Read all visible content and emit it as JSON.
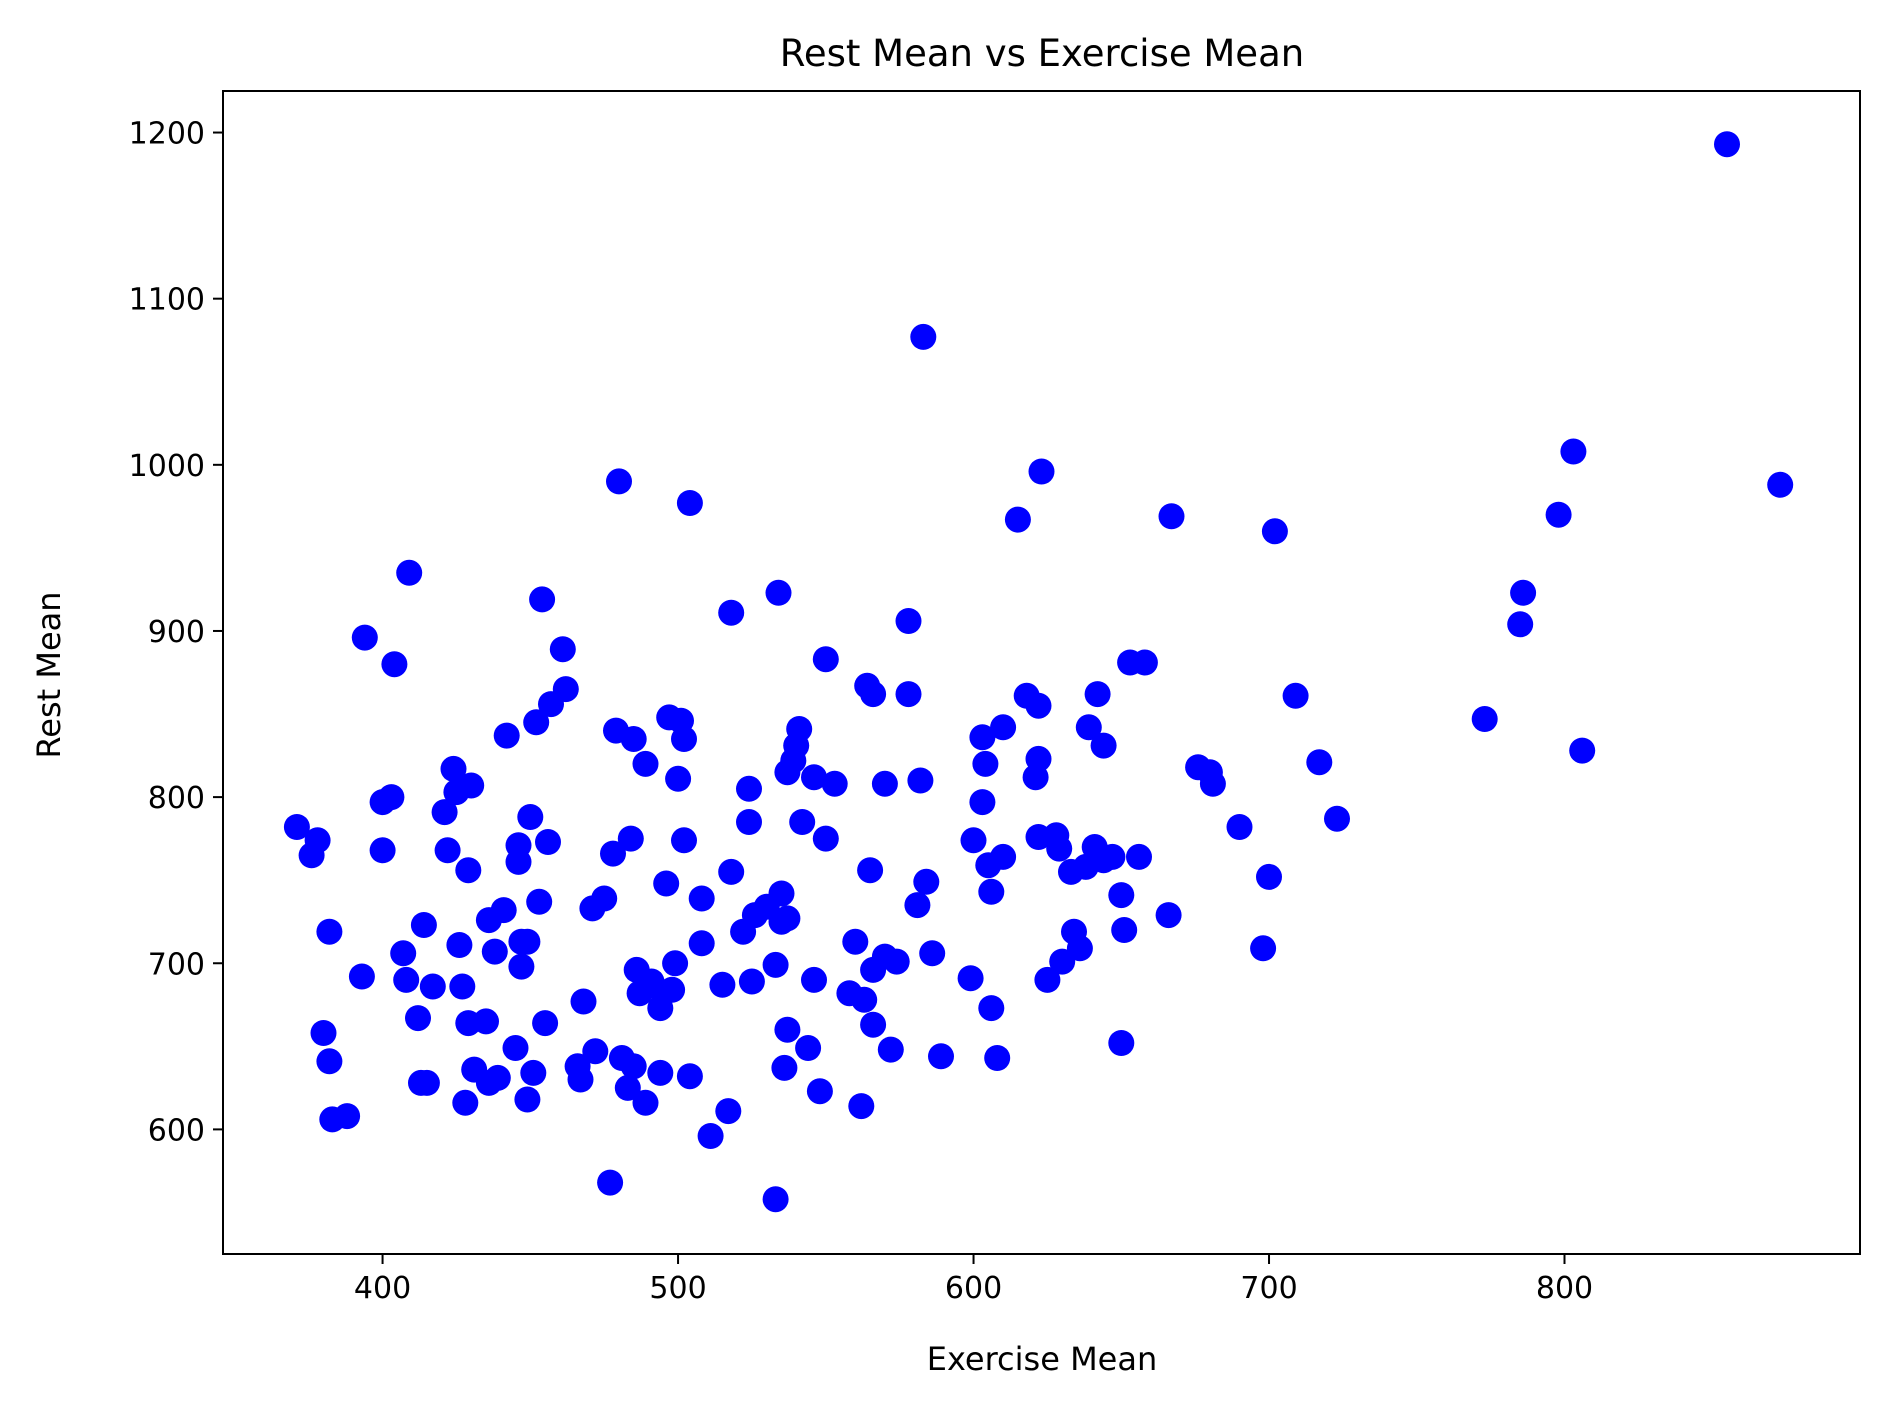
{
  "chart_data": {
    "type": "scatter",
    "title": "Rest Mean vs Exercise Mean",
    "xlabel": "Exercise Mean",
    "ylabel": "Rest Mean",
    "xlim": [
      346,
      900
    ],
    "ylim": [
      525,
      1225
    ],
    "xticks": [
      400,
      500,
      600,
      700,
      800
    ],
    "yticks": [
      600,
      700,
      800,
      900,
      1000,
      1100,
      1200
    ],
    "grid": false,
    "marker_color": "#0000ff",
    "points": [
      [
        371,
        782
      ],
      [
        378,
        774
      ],
      [
        376,
        765
      ],
      [
        382,
        719
      ],
      [
        380,
        658
      ],
      [
        382,
        641
      ],
      [
        383,
        606
      ],
      [
        388,
        608
      ],
      [
        393,
        692
      ],
      [
        394,
        896
      ],
      [
        400,
        797
      ],
      [
        400,
        768
      ],
      [
        403,
        800
      ],
      [
        404,
        880
      ],
      [
        407,
        706
      ],
      [
        408,
        690
      ],
      [
        409,
        935
      ],
      [
        412,
        667
      ],
      [
        413,
        628
      ],
      [
        414,
        723
      ],
      [
        415,
        628
      ],
      [
        417,
        686
      ],
      [
        421,
        791
      ],
      [
        422,
        768
      ],
      [
        424,
        817
      ],
      [
        425,
        803
      ],
      [
        426,
        711
      ],
      [
        427,
        686
      ],
      [
        428,
        616
      ],
      [
        429,
        756
      ],
      [
        429,
        664
      ],
      [
        430,
        807
      ],
      [
        431,
        636
      ],
      [
        435,
        665
      ],
      [
        436,
        726
      ],
      [
        436,
        628
      ],
      [
        438,
        707
      ],
      [
        439,
        631
      ],
      [
        441,
        732
      ],
      [
        442,
        837
      ],
      [
        445,
        649
      ],
      [
        446,
        761
      ],
      [
        446,
        771
      ],
      [
        447,
        698
      ],
      [
        447,
        713
      ],
      [
        449,
        713
      ],
      [
        449,
        618
      ],
      [
        450,
        788
      ],
      [
        451,
        634
      ],
      [
        452,
        845
      ],
      [
        453,
        737
      ],
      [
        454,
        919
      ],
      [
        455,
        664
      ],
      [
        456,
        773
      ],
      [
        457,
        856
      ],
      [
        461,
        889
      ],
      [
        462,
        865
      ],
      [
        466,
        638
      ],
      [
        467,
        630
      ],
      [
        468,
        677
      ],
      [
        471,
        733
      ],
      [
        472,
        647
      ],
      [
        475,
        739
      ],
      [
        477,
        568
      ],
      [
        478,
        766
      ],
      [
        479,
        840
      ],
      [
        480,
        990
      ],
      [
        481,
        643
      ],
      [
        483,
        625
      ],
      [
        484,
        775
      ],
      [
        485,
        835
      ],
      [
        485,
        638
      ],
      [
        486,
        696
      ],
      [
        487,
        682
      ],
      [
        489,
        616
      ],
      [
        489,
        820
      ],
      [
        491,
        689
      ],
      [
        494,
        673
      ],
      [
        494,
        634
      ],
      [
        495,
        682
      ],
      [
        496,
        748
      ],
      [
        497,
        848
      ],
      [
        498,
        684
      ],
      [
        499,
        700
      ],
      [
        500,
        811
      ],
      [
        501,
        846
      ],
      [
        502,
        774
      ],
      [
        502,
        835
      ],
      [
        504,
        632
      ],
      [
        504,
        977
      ],
      [
        508,
        739
      ],
      [
        508,
        712
      ],
      [
        511,
        596
      ],
      [
        515,
        687
      ],
      [
        517,
        611
      ],
      [
        518,
        911
      ],
      [
        518,
        755
      ],
      [
        522,
        719
      ],
      [
        524,
        805
      ],
      [
        524,
        785
      ],
      [
        525,
        689
      ],
      [
        526,
        729
      ],
      [
        530,
        734
      ],
      [
        533,
        699
      ],
      [
        533,
        558
      ],
      [
        534,
        923
      ],
      [
        535,
        742
      ],
      [
        535,
        725
      ],
      [
        536,
        637
      ],
      [
        537,
        815
      ],
      [
        537,
        727
      ],
      [
        537,
        660
      ],
      [
        539,
        822
      ],
      [
        540,
        831
      ],
      [
        541,
        841
      ],
      [
        542,
        785
      ],
      [
        544,
        649
      ],
      [
        546,
        812
      ],
      [
        546,
        690
      ],
      [
        548,
        623
      ],
      [
        550,
        883
      ],
      [
        550,
        775
      ],
      [
        553,
        808
      ],
      [
        558,
        682
      ],
      [
        560,
        713
      ],
      [
        562,
        614
      ],
      [
        563,
        678
      ],
      [
        564,
        867
      ],
      [
        565,
        756
      ],
      [
        566,
        862
      ],
      [
        566,
        696
      ],
      [
        566,
        663
      ],
      [
        570,
        808
      ],
      [
        570,
        704
      ],
      [
        572,
        648
      ],
      [
        574,
        701
      ],
      [
        578,
        906
      ],
      [
        578,
        862
      ],
      [
        581,
        735
      ],
      [
        582,
        810
      ],
      [
        583,
        1077
      ],
      [
        584,
        749
      ],
      [
        586,
        706
      ],
      [
        589,
        644
      ],
      [
        599,
        691
      ],
      [
        600,
        774
      ],
      [
        603,
        836
      ],
      [
        603,
        797
      ],
      [
        604,
        820
      ],
      [
        605,
        759
      ],
      [
        606,
        743
      ],
      [
        606,
        673
      ],
      [
        608,
        643
      ],
      [
        610,
        764
      ],
      [
        610,
        842
      ],
      [
        615,
        967
      ],
      [
        618,
        861
      ],
      [
        621,
        812
      ],
      [
        622,
        855
      ],
      [
        622,
        823
      ],
      [
        622,
        776
      ],
      [
        623,
        996
      ],
      [
        625,
        690
      ],
      [
        628,
        777
      ],
      [
        629,
        769
      ],
      [
        630,
        701
      ],
      [
        633,
        755
      ],
      [
        634,
        719
      ],
      [
        636,
        709
      ],
      [
        638,
        758
      ],
      [
        639,
        842
      ],
      [
        641,
        770
      ],
      [
        642,
        862
      ],
      [
        644,
        762
      ],
      [
        644,
        831
      ],
      [
        647,
        764
      ],
      [
        650,
        741
      ],
      [
        650,
        652
      ],
      [
        651,
        720
      ],
      [
        653,
        881
      ],
      [
        656,
        764
      ],
      [
        658,
        881
      ],
      [
        666,
        729
      ],
      [
        667,
        969
      ],
      [
        676,
        818
      ],
      [
        680,
        815
      ],
      [
        681,
        808
      ],
      [
        690,
        782
      ],
      [
        698,
        709
      ],
      [
        700,
        752
      ],
      [
        702,
        960
      ],
      [
        709,
        861
      ],
      [
        717,
        821
      ],
      [
        723,
        787
      ],
      [
        773,
        847
      ],
      [
        785,
        904
      ],
      [
        786,
        923
      ],
      [
        798,
        970
      ],
      [
        803,
        1008
      ],
      [
        806,
        828
      ],
      [
        855,
        1193
      ],
      [
        873,
        988
      ]
    ]
  }
}
